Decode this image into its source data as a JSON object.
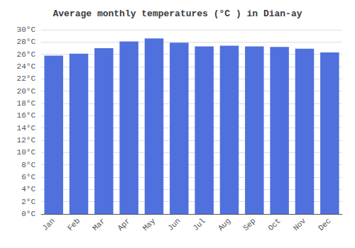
{
  "chart_data": {
    "type": "bar",
    "title": "Average monthly temperatures (°C ) in Dian-ay",
    "categories": [
      "Jan",
      "Feb",
      "Mar",
      "Apr",
      "May",
      "Jun",
      "Jul",
      "Aug",
      "Sep",
      "Oct",
      "Nov",
      "Dec"
    ],
    "values": [
      25.8,
      26.1,
      27.0,
      28.1,
      28.6,
      27.9,
      27.3,
      27.4,
      27.3,
      27.2,
      26.9,
      26.3
    ],
    "ylim": [
      0,
      30
    ],
    "yticks": [
      {
        "value": 0,
        "label": "0°C"
      },
      {
        "value": 2,
        "label": "2°C"
      },
      {
        "value": 4,
        "label": "4°C"
      },
      {
        "value": 6,
        "label": "6°C"
      },
      {
        "value": 8,
        "label": "8°C"
      },
      {
        "value": 10,
        "label": "10°C"
      },
      {
        "value": 12,
        "label": "12°C"
      },
      {
        "value": 14,
        "label": "14°C"
      },
      {
        "value": 16,
        "label": "16°C"
      },
      {
        "value": 18,
        "label": "18°C"
      },
      {
        "value": 20,
        "label": "20°C"
      },
      {
        "value": 22,
        "label": "22°C"
      },
      {
        "value": 24,
        "label": "24°C"
      },
      {
        "value": 26,
        "label": "26°C"
      },
      {
        "value": 28,
        "label": "28°C"
      },
      {
        "value": 30,
        "label": "30°C"
      }
    ],
    "grid": true
  }
}
